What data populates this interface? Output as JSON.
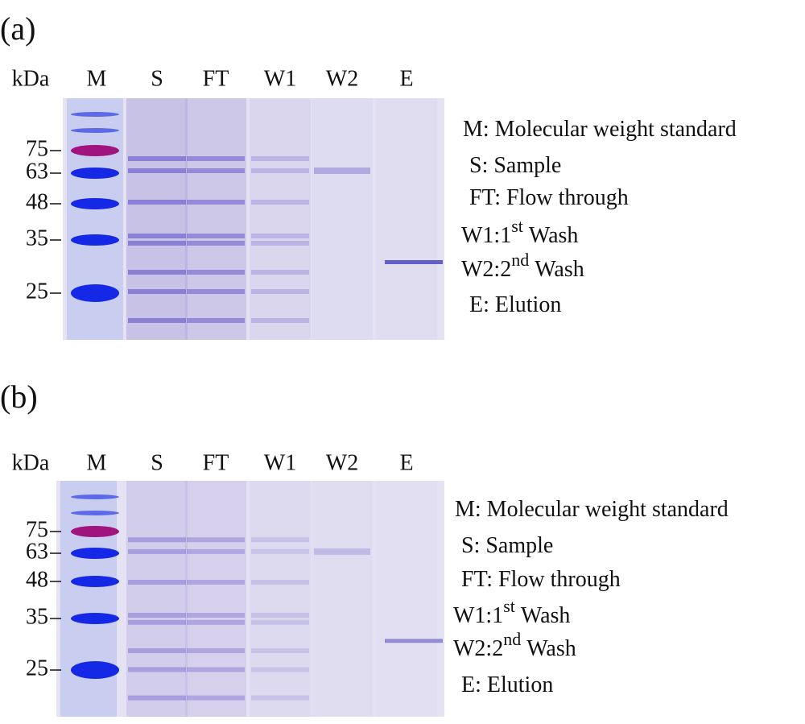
{
  "panels": [
    {
      "label": "(a)",
      "unit": "kDa",
      "lanes": [
        "M",
        "S",
        "FT",
        "W1",
        "W2",
        "E"
      ],
      "markers": [
        "75",
        "63",
        "48",
        "35",
        "25"
      ],
      "legend": [
        {
          "text": "M: Molecular weight standard"
        },
        {
          "text": "S: Sample"
        },
        {
          "text": "FT: Flow through"
        },
        {
          "text": "W1:1",
          "sup": "st",
          "rest": "Wash"
        },
        {
          "text": "W2:2",
          "sup": "nd",
          "rest": "Wash"
        },
        {
          "text": "E: Elution"
        }
      ]
    },
    {
      "label": "(b)",
      "unit": "kDa",
      "lanes": [
        "M",
        "S",
        "FT",
        "W1",
        "W2",
        "E"
      ],
      "markers": [
        "75",
        "63",
        "48",
        "35",
        "25"
      ],
      "legend": [
        {
          "text": "M: Molecular weight standard"
        },
        {
          "text": "S: Sample"
        },
        {
          "text": "FT: Flow through"
        },
        {
          "text": "W1:1",
          "sup": "st",
          "rest": "Wash"
        },
        {
          "text": "W2:2",
          "sup": "nd",
          "rest": "Wash"
        },
        {
          "text": "E: Elution"
        }
      ]
    }
  ]
}
